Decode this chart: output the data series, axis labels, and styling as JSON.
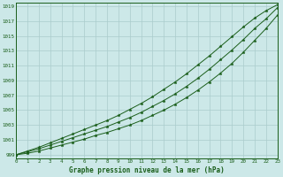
{
  "x": [
    0,
    1,
    2,
    3,
    4,
    5,
    6,
    7,
    8,
    9,
    10,
    11,
    12,
    13,
    14,
    15,
    16,
    17,
    18,
    19,
    20,
    21,
    22,
    23
  ],
  "y_main": [
    999.0,
    999.4,
    999.8,
    1000.3,
    1000.8,
    1001.3,
    1001.8,
    1002.3,
    1002.8,
    1003.4,
    1004.0,
    1004.7,
    1005.5,
    1006.3,
    1007.2,
    1008.2,
    1009.3,
    1010.5,
    1011.8,
    1013.1,
    1014.5,
    1016.0,
    1017.3,
    1018.8
  ],
  "y_upper": [
    999.0,
    999.5,
    1000.0,
    1000.6,
    1001.2,
    1001.8,
    1002.4,
    1003.0,
    1003.6,
    1004.3,
    1005.1,
    1005.9,
    1006.8,
    1007.8,
    1008.8,
    1009.9,
    1011.1,
    1012.3,
    1013.6,
    1014.9,
    1016.2,
    1017.4,
    1018.4,
    1019.2
  ],
  "y_lower": [
    999.0,
    999.2,
    999.5,
    999.9,
    1000.3,
    1000.7,
    1001.1,
    1001.6,
    1002.0,
    1002.5,
    1003.0,
    1003.6,
    1004.3,
    1005.0,
    1005.8,
    1006.7,
    1007.7,
    1008.8,
    1010.0,
    1011.3,
    1012.8,
    1014.4,
    1016.0,
    1017.8
  ],
  "line_color": "#1a5e1a",
  "bg_color": "#cce8e8",
  "grid_color": "#aacccc",
  "title": "Graphe pression niveau de la mer (hPa)",
  "xlim": [
    0,
    23
  ],
  "ylim": [
    998.5,
    1019.5
  ],
  "yticks": [
    999,
    1001,
    1003,
    1005,
    1007,
    1009,
    1011,
    1013,
    1015,
    1017,
    1019
  ],
  "xticks": [
    0,
    1,
    2,
    3,
    4,
    5,
    6,
    7,
    8,
    9,
    10,
    11,
    12,
    13,
    14,
    15,
    16,
    17,
    18,
    19,
    20,
    21,
    22,
    23
  ],
  "marker": "*",
  "marker_size": 2.5,
  "linewidth": 0.7
}
